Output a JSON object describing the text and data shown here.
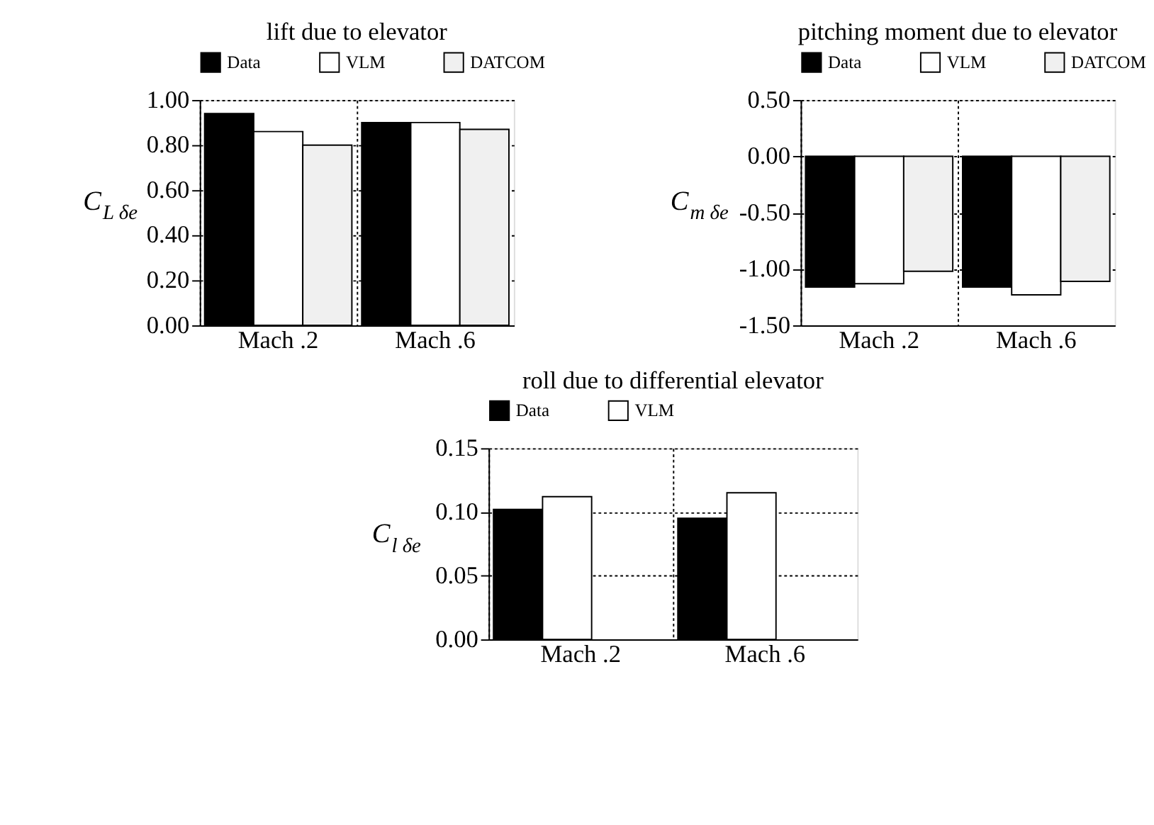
{
  "chart_data": [
    {
      "type": "bar",
      "title": "lift due to elevator",
      "ylabel": "C$_{L δe}$",
      "categories": [
        "Mach .2",
        "Mach .6"
      ],
      "series": [
        {
          "name": "Data",
          "color": "#000000",
          "values": [
            0.94,
            0.9
          ]
        },
        {
          "name": "VLM",
          "color": "#ffffff",
          "values": [
            0.86,
            0.9
          ]
        },
        {
          "name": "DATCOM",
          "color": "#f0f0f0",
          "values": [
            0.8,
            0.87
          ]
        }
      ],
      "ylim": [
        0,
        1
      ],
      "yticks": [
        {
          "value": 0,
          "label": "0.00"
        },
        {
          "value": 0.2,
          "label": "0.20"
        },
        {
          "value": 0.4,
          "label": "0.40"
        },
        {
          "value": 0.6,
          "label": "0.60"
        },
        {
          "value": 0.8,
          "label": "0.80"
        },
        {
          "value": 1,
          "label": "1.00"
        }
      ],
      "grid": true,
      "legend": "top"
    },
    {
      "type": "bar",
      "title": "pitching moment due to elevator",
      "ylabel": "C$_{m δe}$",
      "categories": [
        "Mach .2",
        "Mach .6"
      ],
      "series": [
        {
          "name": "Data",
          "color": "#000000",
          "values": [
            -1.16,
            -1.16
          ]
        },
        {
          "name": "VLM",
          "color": "#ffffff",
          "values": [
            -1.13,
            -1.23
          ]
        },
        {
          "name": "DATCOM",
          "color": "#f0f0f0",
          "values": [
            -1.02,
            -1.11
          ]
        }
      ],
      "ylim": [
        -1.5,
        0.5
      ],
      "yticks": [
        {
          "value": -1.5,
          "label": "-1.50"
        },
        {
          "value": -1,
          "label": "-1.00"
        },
        {
          "value": -0.5,
          "label": "-0.50"
        },
        {
          "value": 0,
          "label": "0.00"
        },
        {
          "value": 0.5,
          "label": "0.50"
        }
      ],
      "grid": true,
      "legend": "top"
    },
    {
      "type": "bar",
      "title": "roll due to differential elevator",
      "ylabel": "C$_{l δe}$",
      "categories": [
        "Mach .2",
        "Mach .6"
      ],
      "series": [
        {
          "name": "Data",
          "color": "#000000",
          "values": [
            0.102,
            0.095
          ]
        },
        {
          "name": "VLM",
          "color": "#ffffff",
          "values": [
            0.112,
            0.115
          ]
        }
      ],
      "ylim": [
        0,
        0.15
      ],
      "yticks": [
        {
          "value": 0,
          "label": "0.00"
        },
        {
          "value": 0.05,
          "label": "0.05"
        },
        {
          "value": 0.1,
          "label": "0.10"
        },
        {
          "value": 0.15,
          "label": "0.15"
        }
      ],
      "grid": true,
      "legend": "top"
    }
  ]
}
